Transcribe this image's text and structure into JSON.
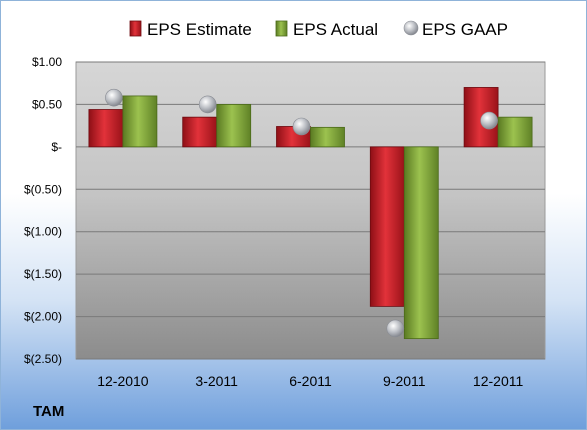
{
  "chart_data": {
    "type": "bar",
    "ticker": "TAM",
    "categories": [
      "12-2010",
      "3-2011",
      "6-2011",
      "9-2011",
      "12-2011"
    ],
    "series": [
      {
        "name": "EPS Estimate",
        "kind": "bar",
        "color": "#c0202a",
        "values": [
          0.44,
          0.35,
          0.24,
          -1.88,
          0.7
        ]
      },
      {
        "name": "EPS Actual",
        "kind": "bar",
        "color": "#7fa33c",
        "values": [
          0.6,
          0.5,
          0.23,
          -2.26,
          0.35
        ]
      },
      {
        "name": "EPS GAAP",
        "kind": "marker",
        "color": "#b8bcc4",
        "values": [
          0.58,
          0.5,
          0.24,
          -2.14,
          0.31
        ]
      }
    ],
    "y_ticks": [
      {
        "value": 1.0,
        "label": "$1.00"
      },
      {
        "value": 0.5,
        "label": "$0.50"
      },
      {
        "value": 0.0,
        "label": "$-"
      },
      {
        "value": -0.5,
        "label": "$(0.50)"
      },
      {
        "value": -1.0,
        "label": "$(1.00)"
      },
      {
        "value": -1.5,
        "label": "$(1.50)"
      },
      {
        "value": -2.0,
        "label": "$(2.00)"
      },
      {
        "value": -2.5,
        "label": "$(2.50)"
      }
    ],
    "ylim": [
      -2.5,
      1.0
    ],
    "grid": true,
    "legend_position": "top"
  }
}
